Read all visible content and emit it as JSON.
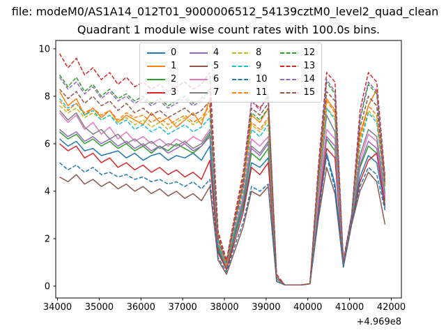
{
  "figure": {
    "suptitle": "file: modeM0/AS1A14_012T01_9000006512_54139cztM0_level2_quad_clean",
    "title": "Quadrant 1 module wise count rates with 100.0s bins."
  },
  "axes": {
    "xticks": [
      34000,
      35000,
      36000,
      37000,
      38000,
      39000,
      40000,
      41000,
      42000
    ],
    "yticks": [
      0,
      2,
      4,
      6,
      8,
      10
    ],
    "x_offset_text": "+4.969e8",
    "xlim": [
      33958,
      42242
    ],
    "ylim": [
      -0.5,
      10.35
    ]
  },
  "legend": {
    "location": "upper center inside axes",
    "columns": 4,
    "labels": [
      "0",
      "1",
      "2",
      "3",
      "4",
      "5",
      "6",
      "7",
      "8",
      "9",
      "10",
      "11",
      "12",
      "13",
      "14",
      "15"
    ]
  },
  "chart_data": {
    "type": "line",
    "title": "Quadrant 1 module wise count rates with 100.0s bins.",
    "xlabel": "",
    "ylabel": "",
    "grid": false,
    "x_axis_offset": "+4.969e8",
    "xlim": [
      33958,
      42242
    ],
    "ylim": [
      -0.5,
      10.35
    ],
    "x": [
      34050,
      34250,
      34450,
      34650,
      34850,
      35050,
      35250,
      35450,
      35650,
      35850,
      36050,
      36250,
      36450,
      36650,
      36850,
      37050,
      37250,
      37450,
      37650,
      37850,
      38050,
      38250,
      38450,
      38650,
      38850,
      39050,
      39250,
      39450,
      39650,
      39850,
      40050,
      40250,
      40450,
      40650,
      40850,
      41050,
      41250,
      41450,
      41650,
      41850
    ],
    "series": [
      {
        "name": "0",
        "color": "#1f77b4",
        "linestyle": "solid",
        "values": [
          6.2,
          5.9,
          6.1,
          5.7,
          5.8,
          5.5,
          5.6,
          5.7,
          5.4,
          5.6,
          5.3,
          5.5,
          5.6,
          5.3,
          5.5,
          5.4,
          5.6,
          5.3,
          5.9,
          1.5,
          0.7,
          2.1,
          3.3,
          5.2,
          5.0,
          5.4,
          0.3,
          0.05,
          0.05,
          0.05,
          0.1,
          3.1,
          5.6,
          4.3,
          0.9,
          2.8,
          4.6,
          5.5,
          5.2,
          3.3
        ]
      },
      {
        "name": "1",
        "color": "#ff7f0e",
        "linestyle": "solid",
        "values": [
          8.2,
          7.6,
          7.9,
          7.2,
          7.5,
          7.1,
          7.4,
          6.9,
          7.2,
          7.0,
          6.8,
          7.3,
          6.9,
          7.1,
          6.7,
          7.0,
          7.3,
          6.8,
          7.9,
          2.0,
          1.0,
          2.8,
          4.4,
          7.2,
          6.9,
          7.5,
          0.4,
          0.05,
          0.05,
          0.05,
          0.1,
          4.3,
          7.9,
          7.4,
          1.0,
          2.9,
          6.4,
          7.6,
          8.3,
          4.3
        ]
      },
      {
        "name": "2",
        "color": "#2ca02c",
        "linestyle": "solid",
        "values": [
          6.5,
          6.2,
          6.4,
          6.0,
          6.2,
          5.9,
          6.1,
          5.8,
          6.0,
          5.7,
          5.9,
          5.6,
          5.9,
          5.7,
          6.0,
          5.8,
          5.6,
          5.9,
          6.4,
          1.6,
          0.8,
          2.2,
          3.5,
          5.6,
          5.3,
          5.8,
          0.3,
          0.05,
          0.05,
          0.05,
          0.1,
          3.4,
          6.2,
          5.7,
          0.9,
          2.7,
          5.0,
          5.9,
          5.6,
          3.6
        ]
      },
      {
        "name": "3",
        "color": "#d62728",
        "linestyle": "solid",
        "values": [
          6.0,
          5.7,
          5.9,
          5.4,
          5.6,
          5.2,
          5.4,
          5.0,
          5.2,
          4.9,
          5.1,
          4.8,
          5.0,
          4.7,
          4.9,
          4.6,
          4.8,
          4.5,
          5.3,
          1.4,
          0.7,
          1.9,
          3.1,
          5.0,
          4.7,
          5.2,
          0.3,
          0.05,
          0.05,
          0.05,
          0.1,
          3.2,
          5.8,
          5.4,
          0.8,
          2.6,
          4.4,
          5.3,
          5.6,
          3.4
        ]
      },
      {
        "name": "4",
        "color": "#9467bd",
        "linestyle": "solid",
        "values": [
          6.6,
          6.3,
          6.5,
          6.1,
          6.3,
          6.0,
          6.2,
          5.9,
          6.1,
          5.8,
          6.0,
          5.7,
          5.9,
          5.6,
          5.8,
          6.0,
          5.7,
          5.9,
          6.3,
          1.7,
          0.8,
          2.3,
          3.6,
          5.8,
          5.5,
          6.0,
          0.3,
          0.05,
          0.05,
          0.05,
          0.1,
          3.5,
          6.3,
          5.9,
          0.9,
          2.8,
          5.1,
          6.1,
          5.8,
          3.7
        ]
      },
      {
        "name": "5",
        "color": "#8c564b",
        "linestyle": "solid",
        "values": [
          4.6,
          4.4,
          4.7,
          4.3,
          4.5,
          4.2,
          4.4,
          4.1,
          4.3,
          4.0,
          4.2,
          3.9,
          4.1,
          3.8,
          4.0,
          3.7,
          3.9,
          3.6,
          4.2,
          1.1,
          0.5,
          1.5,
          2.5,
          4.0,
          3.8,
          4.2,
          0.2,
          0.05,
          0.05,
          0.05,
          0.1,
          2.8,
          5.0,
          3.9,
          0.8,
          2.6,
          4.0,
          4.8,
          4.4,
          2.6
        ]
      },
      {
        "name": "6",
        "color": "#e377c2",
        "linestyle": "solid",
        "values": [
          7.3,
          6.9,
          7.2,
          6.6,
          6.9,
          6.4,
          6.7,
          6.2,
          6.5,
          6.1,
          6.3,
          6.0,
          6.2,
          5.9,
          6.2,
          6.0,
          6.3,
          6.1,
          6.6,
          1.8,
          0.9,
          2.4,
          3.8,
          6.2,
          5.9,
          6.3,
          0.3,
          0.05,
          0.05,
          0.05,
          0.1,
          3.6,
          6.6,
          6.2,
          0.9,
          2.8,
          5.3,
          6.4,
          6.1,
          3.8
        ]
      },
      {
        "name": "7",
        "color": "#7f7f7f",
        "linestyle": "solid",
        "values": [
          7.4,
          7.0,
          7.3,
          6.7,
          6.4,
          6.6,
          6.2,
          6.4,
          6.0,
          6.2,
          5.9,
          6.1,
          5.8,
          6.0,
          5.9,
          6.1,
          5.8,
          6.0,
          6.5,
          1.7,
          0.8,
          2.3,
          3.6,
          5.9,
          5.6,
          6.1,
          0.3,
          0.05,
          0.05,
          0.05,
          0.1,
          3.9,
          7.2,
          6.5,
          0.9,
          2.8,
          5.5,
          6.6,
          6.3,
          3.9
        ]
      },
      {
        "name": "8",
        "color": "#bcbd22",
        "linestyle": "dashed",
        "values": [
          7.6,
          7.3,
          7.5,
          7.1,
          7.3,
          7.0,
          7.2,
          6.9,
          7.1,
          6.8,
          7.0,
          6.7,
          6.9,
          6.6,
          6.9,
          7.1,
          6.8,
          7.0,
          7.4,
          1.9,
          0.9,
          2.6,
          4.1,
          6.8,
          6.5,
          7.0,
          0.4,
          0.05,
          0.05,
          0.05,
          0.1,
          4.1,
          7.5,
          7.1,
          1.0,
          2.9,
          6.0,
          7.4,
          7.0,
          4.2
        ]
      },
      {
        "name": "9",
        "color": "#17becf",
        "linestyle": "dashed",
        "values": [
          7.9,
          7.5,
          7.7,
          7.2,
          7.4,
          7.0,
          7.2,
          6.8,
          7.0,
          6.6,
          6.8,
          6.5,
          6.7,
          6.4,
          6.6,
          6.8,
          6.5,
          6.7,
          7.1,
          1.8,
          0.9,
          2.5,
          4.0,
          6.6,
          6.3,
          6.8,
          0.4,
          0.05,
          0.05,
          0.05,
          0.1,
          4.0,
          7.5,
          7.0,
          0.9,
          2.8,
          5.9,
          7.3,
          6.9,
          4.1
        ]
      },
      {
        "name": "10",
        "color": "#1f77b4",
        "linestyle": "dashed",
        "values": [
          5.2,
          4.9,
          5.1,
          4.8,
          5.0,
          4.7,
          4.8,
          4.6,
          4.7,
          4.5,
          4.6,
          4.4,
          4.5,
          4.3,
          4.4,
          4.2,
          4.4,
          4.1,
          4.5,
          1.2,
          0.6,
          1.7,
          2.7,
          4.2,
          4.0,
          4.3,
          0.2,
          0.05,
          0.05,
          0.05,
          0.1,
          3.0,
          5.5,
          4.1,
          0.8,
          2.7,
          4.2,
          5.0,
          4.7,
          3.2
        ]
      },
      {
        "name": "11",
        "color": "#ff7f0e",
        "linestyle": "dashed",
        "values": [
          7.8,
          7.4,
          7.7,
          7.3,
          7.5,
          7.2,
          7.4,
          7.0,
          7.3,
          7.1,
          7.2,
          6.9,
          7.1,
          6.8,
          7.0,
          7.2,
          6.9,
          7.1,
          7.6,
          2.0,
          0.9,
          2.7,
          4.2,
          6.9,
          6.6,
          7.1,
          0.4,
          0.05,
          0.05,
          0.05,
          0.1,
          4.3,
          7.8,
          7.3,
          1.0,
          2.9,
          6.2,
          7.6,
          7.2,
          4.2
        ]
      },
      {
        "name": "12",
        "color": "#2ca02c",
        "linestyle": "dashed",
        "values": [
          8.9,
          8.4,
          8.8,
          8.2,
          8.5,
          8.0,
          8.3,
          7.9,
          8.1,
          7.8,
          8.0,
          7.7,
          7.9,
          7.6,
          7.8,
          8.0,
          7.7,
          7.9,
          8.3,
          2.2,
          1.0,
          2.9,
          4.6,
          7.3,
          7.0,
          7.5,
          0.4,
          0.05,
          0.05,
          0.05,
          0.1,
          4.7,
          8.6,
          8.1,
          1.0,
          3.0,
          7.0,
          8.5,
          8.1,
          4.5
        ]
      },
      {
        "name": "13",
        "color": "#d62728",
        "linestyle": "dashed",
        "values": [
          9.8,
          9.2,
          9.6,
          8.9,
          9.2,
          8.7,
          9.0,
          8.5,
          8.8,
          8.4,
          8.6,
          8.3,
          8.5,
          8.2,
          8.4,
          8.6,
          8.3,
          8.5,
          9.0,
          2.3,
          1.1,
          3.0,
          4.8,
          7.8,
          7.5,
          8.0,
          0.5,
          0.05,
          0.05,
          0.05,
          0.1,
          5.0,
          9.0,
          8.6,
          1.1,
          3.0,
          7.4,
          9.0,
          8.6,
          4.6
        ]
      },
      {
        "name": "14",
        "color": "#9467bd",
        "linestyle": "dashed",
        "values": [
          8.8,
          8.3,
          8.6,
          8.1,
          8.4,
          7.9,
          8.2,
          7.8,
          8.0,
          7.7,
          7.9,
          7.6,
          7.8,
          7.5,
          7.7,
          7.9,
          7.6,
          7.8,
          8.2,
          2.1,
          1.0,
          2.8,
          4.5,
          7.8,
          7.4,
          8.1,
          0.4,
          0.05,
          0.05,
          0.05,
          0.1,
          4.8,
          8.7,
          8.2,
          1.0,
          3.0,
          7.1,
          8.6,
          8.2,
          4.4
        ]
      },
      {
        "name": "15",
        "color": "#8c564b",
        "linestyle": "dashed",
        "values": [
          8.3,
          7.9,
          8.2,
          7.7,
          8.0,
          7.6,
          7.8,
          7.4,
          7.7,
          7.3,
          7.5,
          7.2,
          7.4,
          7.1,
          7.3,
          7.5,
          7.2,
          7.4,
          7.8,
          2.0,
          1.0,
          2.7,
          4.3,
          7.5,
          7.2,
          7.7,
          0.4,
          0.05,
          0.05,
          0.05,
          0.1,
          4.5,
          8.2,
          7.8,
          1.0,
          2.9,
          6.7,
          8.0,
          7.6,
          4.3
        ]
      }
    ]
  }
}
